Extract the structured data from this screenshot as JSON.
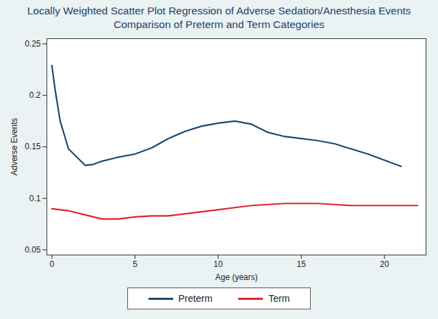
{
  "chart_data": {
    "type": "line",
    "title": "Locally Weighted Scatter Plot Regression of Adverse Sedation/Anesthesia Events",
    "subtitle": "Comparison of Preterm and Term Categories",
    "x_label": "Age (years)",
    "y_label": "Adverse Events",
    "xlim": [
      -0.3,
      22.5
    ],
    "xticks": [
      0,
      5,
      10,
      15,
      20
    ],
    "ylim": [
      0.045,
      0.255
    ],
    "yticks": [
      0.05,
      0.1,
      0.15,
      0.2,
      0.25
    ],
    "grid": false,
    "legend": "bottom",
    "series": [
      {
        "name": "Preterm",
        "color": "#1a476f",
        "x": [
          0,
          0.2,
          0.5,
          1,
          1.5,
          2,
          2.5,
          3,
          4,
          5,
          6,
          7,
          8,
          9,
          10,
          11,
          12,
          13,
          14,
          15,
          16,
          17,
          18,
          19,
          20,
          21
        ],
        "values": [
          0.229,
          0.205,
          0.175,
          0.148,
          0.14,
          0.132,
          0.133,
          0.136,
          0.14,
          0.143,
          0.149,
          0.158,
          0.165,
          0.17,
          0.173,
          0.175,
          0.172,
          0.164,
          0.16,
          0.158,
          0.156,
          0.153,
          0.148,
          0.143,
          0.137,
          0.131
        ]
      },
      {
        "name": "Term",
        "color": "#e3202a",
        "x": [
          0,
          1,
          2,
          3,
          4,
          5,
          6,
          7,
          8,
          9,
          10,
          11,
          12,
          13,
          14,
          15,
          16,
          17,
          18,
          19,
          20,
          21,
          22
        ],
        "values": [
          0.09,
          0.088,
          0.084,
          0.08,
          0.08,
          0.082,
          0.083,
          0.083,
          0.085,
          0.087,
          0.089,
          0.091,
          0.093,
          0.094,
          0.095,
          0.095,
          0.095,
          0.094,
          0.093,
          0.093,
          0.093,
          0.093,
          0.093
        ]
      }
    ]
  }
}
